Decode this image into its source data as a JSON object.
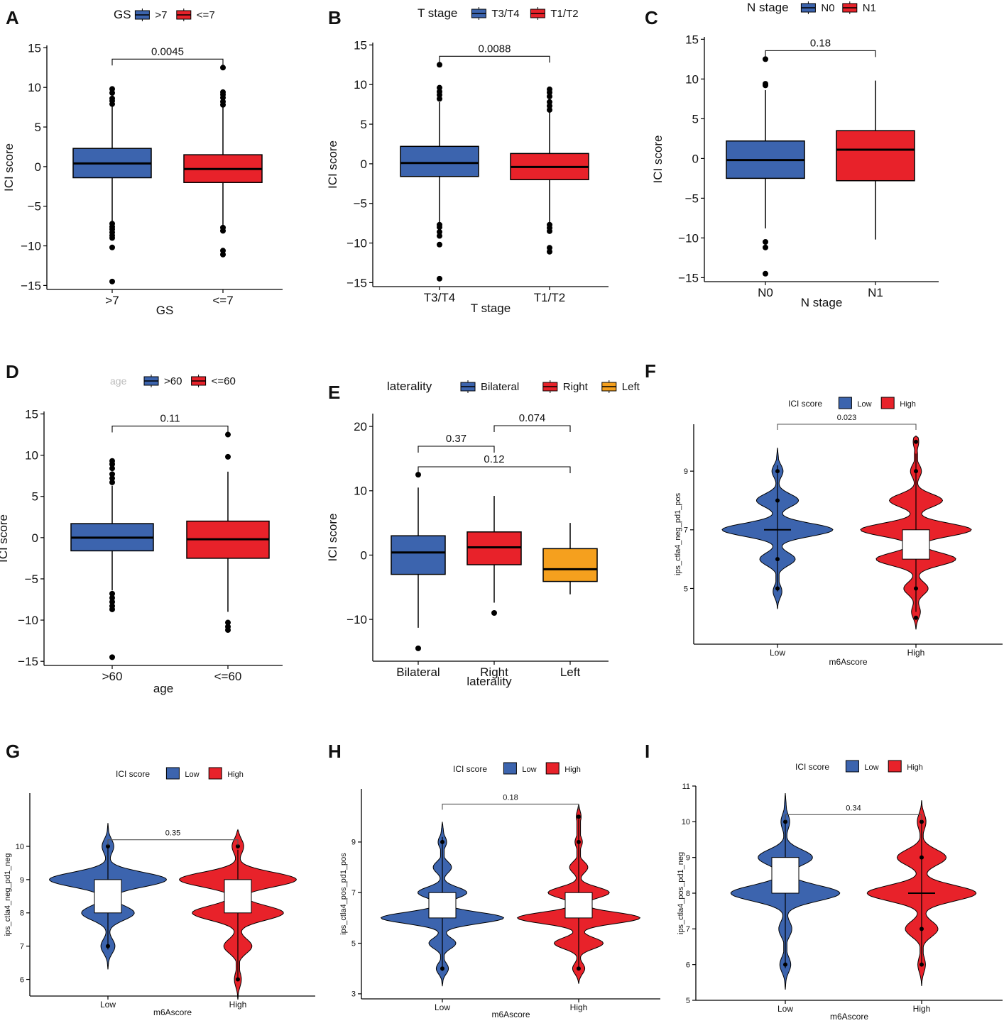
{
  "colors": {
    "blue": "#3C64AE",
    "red": "#E8222A",
    "orange": "#F5A01E",
    "axis": "#000000"
  },
  "chart_data": [
    {
      "panel": "A",
      "type": "boxplot",
      "legend_title": "GS",
      "legend_labels": [
        ">7",
        "<=7"
      ],
      "categories": [
        ">7",
        "<=7"
      ],
      "fill_colors": [
        "blue",
        "red"
      ],
      "xlabel": "GS",
      "ylabel": "ICI score",
      "ylim": [
        -15.5,
        15.3
      ],
      "yticks": [
        -15,
        -10,
        -5,
        0,
        5,
        10,
        15
      ],
      "boxes": [
        {
          "q1": -1.4,
          "median": 0.4,
          "q3": 2.3,
          "whisker_low": -7.0,
          "whisker_high": 7.6,
          "outliers": [
            7.9,
            8.3,
            8.6,
            9.3,
            9.8,
            -7.2,
            -7.6,
            -7.9,
            -8.3,
            -8.7,
            -9.0,
            -10.2,
            -14.5
          ]
        },
        {
          "q1": -2.0,
          "median": -0.3,
          "q3": 1.5,
          "whisker_low": -7.4,
          "whisker_high": 7.5,
          "outliers": [
            7.8,
            8.2,
            8.7,
            9.1,
            9.4,
            12.5,
            -7.7,
            -8.1,
            -10.6,
            -11.1
          ]
        }
      ],
      "comparisons": [
        {
          "from": 0,
          "to": 1,
          "label": "0.0045"
        }
      ]
    },
    {
      "panel": "B",
      "type": "boxplot",
      "legend_title": "T stage",
      "legend_labels": [
        "T3/T4",
        "T1/T2"
      ],
      "categories": [
        "T3/T4",
        "T1/T2"
      ],
      "fill_colors": [
        "blue",
        "red"
      ],
      "xlabel": "T stage",
      "ylabel": "ICI score",
      "ylim": [
        -15.5,
        15.3
      ],
      "yticks": [
        -15,
        -10,
        -5,
        0,
        5,
        10,
        15
      ],
      "boxes": [
        {
          "q1": -1.6,
          "median": 0.1,
          "q3": 2.2,
          "whisker_low": -7.4,
          "whisker_high": 7.8,
          "outliers": [
            8.2,
            8.7,
            9.1,
            9.6,
            12.5,
            -7.7,
            -8.0,
            -8.6,
            -9.1,
            -10.2,
            -14.5
          ]
        },
        {
          "q1": -2.0,
          "median": -0.4,
          "q3": 1.3,
          "whisker_low": -7.4,
          "whisker_high": 6.6,
          "outliers": [
            6.8,
            7.3,
            7.8,
            8.5,
            9.0,
            9.4,
            -7.7,
            -8.1,
            -8.5,
            -10.6,
            -11.1
          ]
        }
      ],
      "comparisons": [
        {
          "from": 0,
          "to": 1,
          "label": "0.0088"
        }
      ]
    },
    {
      "panel": "C",
      "type": "boxplot",
      "legend_title": "N stage",
      "legend_labels": [
        "N0",
        "N1"
      ],
      "categories": [
        "N0",
        "N1"
      ],
      "fill_colors": [
        "blue",
        "red"
      ],
      "xlabel": "N stage",
      "ylabel": "ICI score",
      "ylim": [
        -15.5,
        15.3
      ],
      "yticks": [
        -15,
        -10,
        -5,
        0,
        5,
        10,
        15
      ],
      "boxes": [
        {
          "q1": -2.5,
          "median": -0.2,
          "q3": 2.2,
          "whisker_low": -8.8,
          "whisker_high": 8.6,
          "outliers": [
            9.2,
            9.4,
            12.5,
            -10.5,
            -11.2,
            -14.5
          ]
        },
        {
          "q1": -2.8,
          "median": 1.1,
          "q3": 3.5,
          "whisker_low": -10.2,
          "whisker_high": 9.8,
          "outliers": []
        }
      ],
      "comparisons": [
        {
          "from": 0,
          "to": 1,
          "label": "0.18"
        }
      ]
    },
    {
      "panel": "D",
      "type": "boxplot",
      "legend_title": "age",
      "legend_labels": [
        ">60",
        "<=60"
      ],
      "categories": [
        ">60",
        "<=60"
      ],
      "fill_colors": [
        "blue",
        "red"
      ],
      "xlabel": "age",
      "ylabel": "ICI score",
      "ylim": [
        -15.5,
        15.3
      ],
      "yticks": [
        -15,
        -10,
        -5,
        0,
        5,
        10,
        15
      ],
      "boxes": [
        {
          "q1": -1.6,
          "median": 0.0,
          "q3": 1.7,
          "whisker_low": -6.4,
          "whisker_high": 6.3,
          "outliers": [
            6.7,
            7.2,
            7.7,
            8.4,
            8.9,
            9.3,
            -6.8,
            -7.3,
            -7.8,
            -8.3,
            -8.7,
            -14.5
          ]
        },
        {
          "q1": -2.5,
          "median": -0.2,
          "q3": 2.0,
          "whisker_low": -9.0,
          "whisker_high": 8.0,
          "outliers": [
            9.8,
            12.5,
            -10.3,
            -10.8,
            -11.2
          ]
        }
      ],
      "comparisons": [
        {
          "from": 0,
          "to": 1,
          "label": "0.11"
        }
      ]
    },
    {
      "panel": "E",
      "type": "boxplot",
      "legend_title": "laterality",
      "legend_labels": [
        "Bilateral",
        "Right",
        "Left"
      ],
      "categories": [
        "Bilateral",
        "Right",
        "Left"
      ],
      "fill_colors": [
        "blue",
        "red",
        "orange"
      ],
      "xlabel": "laterality",
      "ylabel": "ICI score",
      "ylim": [
        -16.5,
        22
      ],
      "yticks": [
        -10,
        0,
        10,
        20
      ],
      "boxes": [
        {
          "q1": -3.0,
          "median": 0.4,
          "q3": 3.0,
          "whisker_low": -11.3,
          "whisker_high": 10.5,
          "outliers": [
            12.5,
            -14.5
          ]
        },
        {
          "q1": -1.5,
          "median": 1.2,
          "q3": 3.6,
          "whisker_low": -7.4,
          "whisker_high": 9.2,
          "outliers": [
            -9.0
          ]
        },
        {
          "q1": -4.1,
          "median": -2.2,
          "q3": 1.0,
          "whisker_low": -6.1,
          "whisker_high": 5.0,
          "outliers": []
        }
      ],
      "comparisons": [
        {
          "from": 0,
          "to": 1,
          "label": "0.37",
          "level": 0
        },
        {
          "from": 0,
          "to": 2,
          "label": "0.12",
          "level": 1
        },
        {
          "from": 1,
          "to": 2,
          "label": "0.074",
          "level": 2
        }
      ]
    },
    {
      "panel": "F",
      "type": "violin",
      "legend_title": "ICI score",
      "legend_labels": [
        "Low",
        "High"
      ],
      "categories": [
        "Low",
        "High"
      ],
      "fill_colors": [
        "blue",
        "red"
      ],
      "xlabel": "m6Ascore",
      "ylabel": "ips_ctla4_neg_pd1_pos",
      "ylim": [
        3.1,
        10.6
      ],
      "yticks": [
        5,
        7,
        9
      ],
      "violins": [
        {
          "range": [
            4.3,
            9.8
          ],
          "width": 0.8,
          "peaks": [
            [
              4.9,
              0.08
            ],
            [
              6.0,
              0.32
            ],
            [
              7.0,
              1.0
            ],
            [
              8.0,
              0.38
            ],
            [
              9.0,
              0.1
            ]
          ],
          "box": [
            7,
            7,
            7
          ],
          "points": [
            5,
            6,
            8,
            9
          ]
        },
        {
          "range": [
            3.6,
            10.2
          ],
          "width": 0.8,
          "peaks": [
            [
              4.2,
              0.08
            ],
            [
              5.0,
              0.22
            ],
            [
              6.0,
              0.72
            ],
            [
              7.0,
              1.0
            ],
            [
              8.0,
              0.48
            ],
            [
              9.0,
              0.1
            ],
            [
              10.0,
              0.05
            ]
          ],
          "box": [
            6,
            6.5,
            7
          ],
          "points": [
            4,
            5,
            9,
            10
          ]
        }
      ],
      "comparisons": [
        {
          "from": 0,
          "to": 1,
          "label": "0.023",
          "y": 10.6
        }
      ]
    },
    {
      "panel": "G",
      "type": "violin",
      "legend_title": "ICI score",
      "legend_labels": [
        "Low",
        "High"
      ],
      "categories": [
        "Low",
        "High"
      ],
      "fill_colors": [
        "blue",
        "red"
      ],
      "xlabel": "m6Ascore",
      "ylabel": "ips_ctla4_neg_pd1_neg",
      "ylim": [
        5.5,
        11.6
      ],
      "yticks": [
        6,
        7,
        8,
        9,
        10
      ],
      "violins": [
        {
          "range": [
            6.3,
            10.7
          ],
          "width": 0.9,
          "peaks": [
            [
              7.0,
              0.12
            ],
            [
              8.0,
              0.45
            ],
            [
              9.0,
              1.0
            ],
            [
              10.0,
              0.1
            ]
          ],
          "box": [
            8,
            8.5,
            9
          ],
          "points": [
            7,
            10
          ]
        },
        {
          "range": [
            5.4,
            10.5
          ],
          "width": 0.9,
          "peaks": [
            [
              6.0,
              0.06
            ],
            [
              7.0,
              0.24
            ],
            [
              8.0,
              0.78
            ],
            [
              9.0,
              1.0
            ],
            [
              10.0,
              0.1
            ]
          ],
          "box": [
            8,
            8.5,
            9
          ],
          "points": [
            6,
            10
          ]
        }
      ],
      "comparisons": [
        {
          "from": 0,
          "to": 1,
          "label": "0.35",
          "y": 10.2
        }
      ]
    },
    {
      "panel": "H",
      "type": "violin",
      "legend_title": "ICI score",
      "legend_labels": [
        "Low",
        "High"
      ],
      "categories": [
        "Low",
        "High"
      ],
      "fill_colors": [
        "blue",
        "red"
      ],
      "xlabel": "m6Ascore",
      "ylabel": "ips_ctla4_pos_pd1_pos",
      "ylim": [
        2.8,
        11.1
      ],
      "yticks": [
        3,
        5,
        7,
        9
      ],
      "violins": [
        {
          "range": [
            3.3,
            9.8
          ],
          "width": 0.9,
          "peaks": [
            [
              4.0,
              0.1
            ],
            [
              5.0,
              0.22
            ],
            [
              6.0,
              1.0
            ],
            [
              7.0,
              0.4
            ],
            [
              8.0,
              0.15
            ],
            [
              9.0,
              0.07
            ]
          ],
          "box": [
            6,
            6.5,
            7
          ],
          "points": [
            4,
            9
          ]
        },
        {
          "range": [
            3.4,
            10.5
          ],
          "width": 0.9,
          "peaks": [
            [
              4.0,
              0.1
            ],
            [
              5.0,
              0.4
            ],
            [
              6.0,
              1.0
            ],
            [
              7.0,
              0.5
            ],
            [
              8.0,
              0.15
            ],
            [
              9.0,
              0.06
            ],
            [
              10.0,
              0.04
            ]
          ],
          "box": [
            6,
            6.5,
            7
          ],
          "points": [
            4,
            9,
            10
          ]
        }
      ],
      "comparisons": [
        {
          "from": 0,
          "to": 1,
          "label": "0.18",
          "y": 10.5
        }
      ]
    },
    {
      "panel": "I",
      "type": "violin",
      "legend_title": "ICI score",
      "legend_labels": [
        "Low",
        "High"
      ],
      "categories": [
        "Low",
        "High"
      ],
      "fill_colors": [
        "blue",
        "red"
      ],
      "xlabel": "m6Ascore",
      "ylabel": "ips_ctla4_pos_pd1_neg",
      "ylim": [
        5.0,
        11.0
      ],
      "yticks": [
        5,
        6,
        7,
        8,
        9,
        10,
        11
      ],
      "violins": [
        {
          "range": [
            5.3,
            10.8
          ],
          "width": 0.8,
          "peaks": [
            [
              6.0,
              0.1
            ],
            [
              7.0,
              0.12
            ],
            [
              8.0,
              1.0
            ],
            [
              9.0,
              0.5
            ],
            [
              10.0,
              0.08
            ]
          ],
          "box": [
            8,
            8.5,
            9
          ],
          "points": [
            6,
            10
          ]
        },
        {
          "range": [
            5.4,
            10.6
          ],
          "width": 0.8,
          "peaks": [
            [
              6.0,
              0.07
            ],
            [
              7.0,
              0.3
            ],
            [
              8.0,
              1.0
            ],
            [
              9.0,
              0.45
            ],
            [
              10.0,
              0.08
            ]
          ],
          "box": [
            8,
            8,
            8
          ],
          "points": [
            6,
            7,
            9,
            10
          ]
        }
      ],
      "comparisons": [
        {
          "from": 0,
          "to": 1,
          "label": "0.34",
          "y": 10.2
        }
      ]
    }
  ]
}
